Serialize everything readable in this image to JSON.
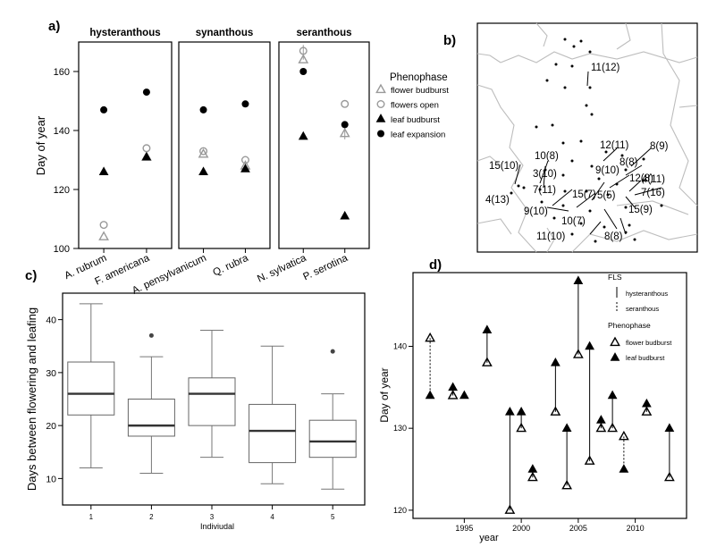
{
  "chart_data": [
    {
      "panel": "a)",
      "type": "scatter",
      "ylabel": "Day of year",
      "ylim": [
        100,
        170
      ],
      "yticks": [
        100,
        120,
        140,
        160
      ],
      "facets": [
        {
          "title": "hysteranthous",
          "species": [
            "A. rubrum",
            "F. americana"
          ]
        },
        {
          "title": "synanthous",
          "species": [
            "A. pensylvanicum",
            "Q. rubra"
          ]
        },
        {
          "title": "seranthous",
          "species": [
            "N. sylvatica",
            "P. serotina"
          ]
        }
      ],
      "legend": {
        "title": "Phenophase",
        "entries": [
          "flower budburst",
          "flowers open",
          "leaf budburst",
          "leaf expansion"
        ]
      },
      "series": [
        {
          "name": "flower budburst",
          "marker": "open-triangle",
          "color": "#999999",
          "values": [
            104,
            131,
            132,
            128,
            164,
            139
          ]
        },
        {
          "name": "flowers open",
          "marker": "open-circle",
          "color": "#999999",
          "values": [
            108,
            134,
            133,
            130,
            167,
            149
          ]
        },
        {
          "name": "leaf budburst",
          "marker": "filled-triangle",
          "color": "#000000",
          "values": [
            126,
            131,
            126,
            127,
            138,
            111
          ]
        },
        {
          "name": "leaf expansion",
          "marker": "filled-circle",
          "color": "#000000",
          "values": [
            147,
            153,
            147,
            149,
            160,
            142
          ]
        }
      ]
    },
    {
      "panel": "b)",
      "type": "map",
      "labels": [
        {
          "text": "11(12)"
        },
        {
          "text": "12(11)"
        },
        {
          "text": "8(9)"
        },
        {
          "text": "10(8)"
        },
        {
          "text": "8(8)"
        },
        {
          "text": "15(10)"
        },
        {
          "text": "3(10)"
        },
        {
          "text": "9(10)"
        },
        {
          "text": "12(8)"
        },
        {
          "text": "4(11)"
        },
        {
          "text": "7(11)"
        },
        {
          "text": "7(16)"
        },
        {
          "text": "4(13)"
        },
        {
          "text": "15(7)"
        },
        {
          "text": "5(5)"
        },
        {
          "text": "9(10)"
        },
        {
          "text": "15(9)"
        },
        {
          "text": "10(7)"
        },
        {
          "text": "11(10)"
        },
        {
          "text": "8(8)"
        }
      ]
    },
    {
      "panel": "c)",
      "type": "box",
      "xlabel": "Indiviudal",
      "ylabel": "Days between flowering and leafing",
      "categories": [
        "1",
        "2",
        "3",
        "4",
        "5"
      ],
      "yticks": [
        10,
        20,
        30,
        40
      ],
      "ylim": [
        5,
        45
      ],
      "boxes": [
        {
          "min": 12,
          "q1": 22,
          "median": 26,
          "q3": 32,
          "max": 43,
          "outliers": []
        },
        {
          "min": 11,
          "q1": 18,
          "median": 20,
          "q3": 25,
          "max": 33,
          "outliers": [
            37
          ]
        },
        {
          "min": 14,
          "q1": 20,
          "median": 26,
          "q3": 29,
          "max": 38,
          "outliers": []
        },
        {
          "min": 9,
          "q1": 13,
          "median": 19,
          "q3": 24,
          "max": 35,
          "outliers": []
        },
        {
          "min": 8,
          "q1": 14,
          "median": 17,
          "q3": 21,
          "max": 26,
          "outliers": [
            34
          ]
        }
      ]
    },
    {
      "panel": "d)",
      "type": "scatter",
      "xlabel": "year",
      "ylabel": "Day of year",
      "xlim": [
        1990.5,
        2014.5
      ],
      "ylim": [
        119,
        149
      ],
      "xticks": [
        1995,
        2000,
        2005,
        2010
      ],
      "yticks": [
        120,
        130,
        140
      ],
      "legend": {
        "fls_title": "FLS",
        "fls_entries": [
          "hysteranthous",
          "seranthous"
        ],
        "phen_title": "Phenophase",
        "phen_entries": [
          "flower budburst",
          "leaf budburst"
        ]
      },
      "points": [
        {
          "year": 1992,
          "flower": 141,
          "leaf": 134,
          "fls": "seranthous"
        },
        {
          "year": 1994,
          "flower": 134,
          "leaf": 135,
          "fls": "hysteranthous"
        },
        {
          "year": 1995,
          "flower": null,
          "leaf": 134,
          "fls": "hysteranthous"
        },
        {
          "year": 1997,
          "flower": 138,
          "leaf": 142,
          "fls": "hysteranthous"
        },
        {
          "year": 1999,
          "flower": 120,
          "leaf": 132,
          "fls": "hysteranthous"
        },
        {
          "year": 2000,
          "flower": 130,
          "leaf": 132,
          "fls": "hysteranthous"
        },
        {
          "year": 2001,
          "flower": 124,
          "leaf": 125,
          "fls": "hysteranthous"
        },
        {
          "year": 2003,
          "flower": 132,
          "leaf": 138,
          "fls": "hysteranthous"
        },
        {
          "year": 2004,
          "flower": 123,
          "leaf": 130,
          "fls": "hysteranthous"
        },
        {
          "year": 2005,
          "flower": 139,
          "leaf": 148,
          "fls": "hysteranthous"
        },
        {
          "year": 2006,
          "flower": 126,
          "leaf": 140,
          "fls": "hysteranthous"
        },
        {
          "year": 2007,
          "flower": 130,
          "leaf": 131,
          "fls": "hysteranthous"
        },
        {
          "year": 2008,
          "flower": 130,
          "leaf": 134,
          "fls": "hysteranthous"
        },
        {
          "year": 2009,
          "flower": 129,
          "leaf": 125,
          "fls": "seranthous"
        },
        {
          "year": 2011,
          "flower": 132,
          "leaf": 133,
          "fls": "hysteranthous"
        },
        {
          "year": 2013,
          "flower": 124,
          "leaf": 130,
          "fls": "hysteranthous"
        }
      ]
    }
  ]
}
